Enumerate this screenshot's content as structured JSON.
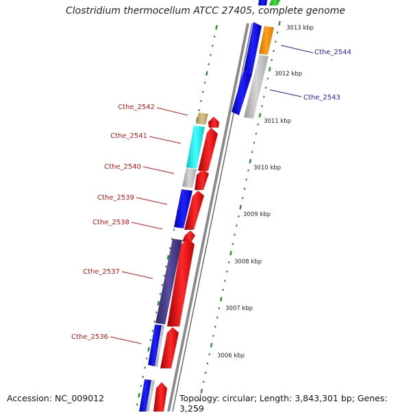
{
  "title": "Clostridium thermocellum ATCC 27405, complete genome",
  "footer": {
    "accession": "Accession: NC_009012",
    "topology": "Topology: circular; Length: 3,843,301 bp; Genes: 3,259"
  },
  "ruler_labels": [
    "3013 kbp",
    "3012 kbp",
    "3011 kbp",
    "3010 kbp",
    "3009 kbp",
    "3008 kbp",
    "3007 kbp",
    "3006 kbp"
  ],
  "gene_labels_forward": [
    "Cthe_2544",
    "Cthe_2543"
  ],
  "gene_labels_reverse": [
    "Cthe_2542",
    "Cthe_2541",
    "Cthe_2540",
    "Cthe_2539",
    "Cthe_2538",
    "Cthe_2537",
    "Cthe_2536"
  ],
  "colors": {
    "forward_label": "#1a1ab4",
    "reverse_label": "#cc1111",
    "backbone": "#888888",
    "tick": "#2e8b2e",
    "cds_red": "#ee1111",
    "cog_blue": "#1010ee",
    "cog_orange": "#ff8c00",
    "cog_grey": "#bbbbbb",
    "cog_cyan": "#22eeee",
    "cog_khaki": "#c8b070",
    "cog_purple": "#4b3f8c"
  }
}
